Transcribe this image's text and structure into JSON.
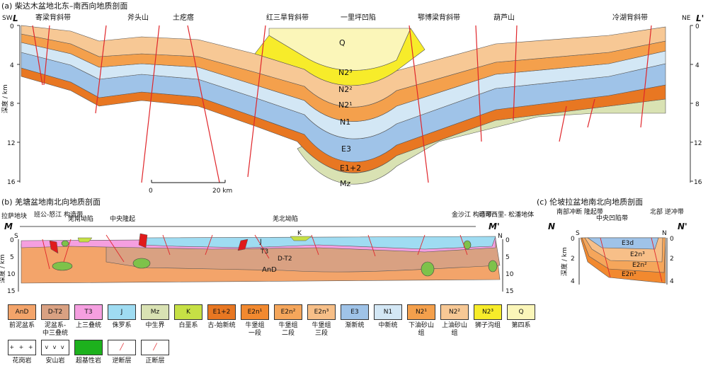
{
  "panel_a": {
    "title": "(a) 柴达木盆地北东–南西向地质剖面",
    "end_left": "L",
    "end_right": "L'",
    "dir_left": "SW",
    "dir_right": "NE",
    "ylabel": "深度 / km",
    "depth_ticks": [
      "0",
      "4",
      "8",
      "12",
      "16"
    ],
    "structures": [
      "寄梁背斜带",
      "斧头山",
      "土疙瘩",
      "红三旱背斜带",
      "一里坪凹陷",
      "鄂博梁背斜带",
      "葫芦山",
      "冷湖背斜带"
    ],
    "units": [
      "Q",
      "N2³",
      "N2²",
      "N2¹",
      "N1",
      "E3",
      "E1+2",
      "Mz"
    ],
    "scale": [
      "0",
      "20 km"
    ]
  },
  "panel_b": {
    "title": "(b) 羌塘盆地南北向地质剖面",
    "end_left": "M",
    "end_right": "M'",
    "dir_left": "S",
    "dir_right": "N",
    "ylabel": "深度 / km",
    "depth_ticks": [
      "0",
      "5",
      "10",
      "15"
    ],
    "zones": [
      "拉萨地块",
      "班公-怒江\n构造带",
      "羌南坳陷",
      "中央隆起",
      "羌北坳陷",
      "金沙江\n构造带",
      "可可西里-\n松潘地体"
    ],
    "units": [
      "K",
      "J",
      "T3",
      "D-T2",
      "AnD"
    ]
  },
  "panel_c": {
    "title": "(c) 伦坡拉盆地南北向地质剖面",
    "end_left": "N",
    "end_right": "N'",
    "dir_left": "S",
    "dir_right": "N",
    "ylabel": "深度 / km",
    "depth_ticks": [
      "0",
      "2",
      "4"
    ],
    "zones": [
      "南部冲断\n隆起带",
      "中央凹陷带",
      "北部\n逆冲带"
    ],
    "units": [
      "E3d",
      "E2n³",
      "E2n²",
      "E2n¹"
    ]
  },
  "legend": [
    {
      "code": "AnD",
      "label": "前泥盆系",
      "color": "#f3a46a"
    },
    {
      "code": "D-T2",
      "label": "泥盆系-\n中三叠统",
      "color": "#d9a182"
    },
    {
      "code": "T3",
      "label": "上三叠统",
      "color": "#f59fe0"
    },
    {
      "code": "J",
      "label": "侏罗系",
      "color": "#9fdcf2"
    },
    {
      "code": "Mz",
      "label": "中生界",
      "color": "#d9e2b3"
    },
    {
      "code": "K",
      "label": "白垩系",
      "color": "#c6e045"
    },
    {
      "code": "E1+2",
      "label": "古-始新统",
      "color": "#e87722"
    },
    {
      "code": "E2n¹",
      "label": "牛堡组\n一段",
      "color": "#f2892f"
    },
    {
      "code": "E2n²",
      "label": "牛堡组\n二段",
      "color": "#f5a65b"
    },
    {
      "code": "E2n³",
      "label": "牛堡组\n三段",
      "color": "#f7bf88"
    },
    {
      "code": "E3",
      "label": "渐新统",
      "color": "#9fc3e8"
    },
    {
      "code": "N1",
      "label": "中新统",
      "color": "#d3e7f5"
    },
    {
      "code": "N2¹",
      "label": "下油砂山组",
      "color": "#f4a04c"
    },
    {
      "code": "N2²",
      "label": "上油砂山组",
      "color": "#f7c895"
    },
    {
      "code": "N2³",
      "label": "狮子沟组",
      "color": "#f7ec2a"
    },
    {
      "code": "Q",
      "label": "第四系",
      "color": "#fbf6b9"
    },
    {
      "code": "",
      "label": "花岗岩",
      "color": "#ffffff"
    },
    {
      "code": "",
      "label": "安山岩",
      "color": "#ffffff"
    },
    {
      "code": "",
      "label": "超基性岩",
      "color": "#1db11d"
    },
    {
      "code": "",
      "label": "逆断层",
      "color": "#ffffff"
    },
    {
      "code": "",
      "label": "正断层",
      "color": "#ffffff"
    }
  ]
}
